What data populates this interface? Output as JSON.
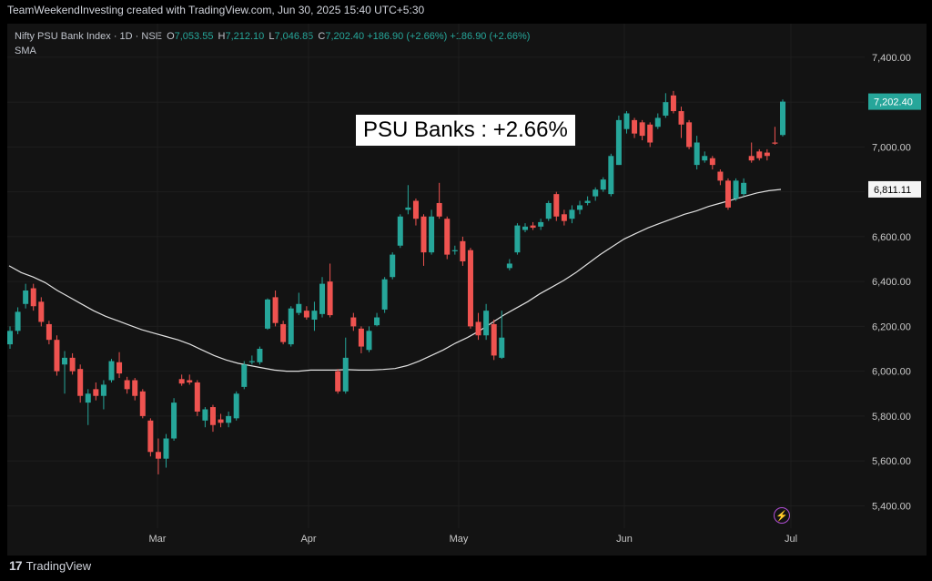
{
  "header": {
    "credit": "TeamWeekendInvesting created with TradingView.com, Jun 30, 2025 15:40 UTC+5:30",
    "symbol": "Nifty PSU Bank Index · 1D · NSE",
    "o_label": "O",
    "o": "7,053.55",
    "h_label": "H",
    "h": "7,212.10",
    "l_label": "L",
    "l": "7,046.85",
    "c_label": "C",
    "c": "7,202.40",
    "change": "+186.90 (+2.66%)",
    "change2": "+186.90 (+2.66%)",
    "indicator": "SMA"
  },
  "annotation": "PSU Banks : +2.66%",
  "footer": {
    "brand": "TradingView",
    "logo": "17"
  },
  "bolt_icon": "lightning-icon",
  "colors": {
    "up": "#26a69a",
    "down": "#ef5350",
    "sma": "#e0e0e0",
    "background": "#131313"
  },
  "chart_data": {
    "type": "candlestick",
    "ylim": [
      5300,
      7550
    ],
    "yticks": [
      5400,
      5600,
      5800,
      6000,
      6200,
      6400,
      6600,
      6800,
      7000,
      7200,
      7400
    ],
    "ytick_labels": [
      "5,400.00",
      "5,600.00",
      "5,800.00",
      "6,000.00",
      "6,200.00",
      "6,400.00",
      "6,600.00",
      "6,800.00",
      "7,000.00",
      "7,200.00",
      "7,400.00"
    ],
    "xtick_labels": [
      {
        "label": "Mar",
        "date": "2025-03-01"
      },
      {
        "label": "Apr",
        "date": "2025-04-01"
      },
      {
        "label": "May",
        "date": "2025-05-01"
      },
      {
        "label": "Jun",
        "date": "2025-06-01"
      },
      {
        "label": "Jul",
        "date": "2025-07-01"
      }
    ],
    "last_price": {
      "value": 7202.4,
      "label": "7,202.40"
    },
    "sma_last": {
      "value": 6811.11,
      "label": "6,811.11"
    },
    "candles": [
      {
        "o": 6120,
        "c": 6180,
        "h": 6200,
        "l": 6100
      },
      {
        "o": 6180,
        "c": 6265,
        "h": 6285,
        "l": 6165
      },
      {
        "o": 6300,
        "c": 6360,
        "h": 6390,
        "l": 6280
      },
      {
        "o": 6370,
        "c": 6290,
        "h": 6390,
        "l": 6270
      },
      {
        "o": 6310,
        "c": 6220,
        "h": 6330,
        "l": 6200
      },
      {
        "o": 6210,
        "c": 6140,
        "h": 6225,
        "l": 6120
      },
      {
        "o": 6140,
        "c": 6000,
        "h": 6160,
        "l": 5980
      },
      {
        "o": 6030,
        "c": 6060,
        "h": 6090,
        "l": 5900
      },
      {
        "o": 6060,
        "c": 6000,
        "h": 6080,
        "l": 5985
      },
      {
        "o": 6010,
        "c": 5890,
        "h": 6030,
        "l": 5860
      },
      {
        "o": 5860,
        "c": 5900,
        "h": 5920,
        "l": 5760
      },
      {
        "o": 5920,
        "c": 5890,
        "h": 5950,
        "l": 5870
      },
      {
        "o": 5890,
        "c": 5940,
        "h": 5960,
        "l": 5830
      },
      {
        "o": 5960,
        "c": 6045,
        "h": 6055,
        "l": 5950
      },
      {
        "o": 6040,
        "c": 5990,
        "h": 6085,
        "l": 5970
      },
      {
        "o": 5960,
        "c": 5920,
        "h": 5975,
        "l": 5900
      },
      {
        "o": 5960,
        "c": 5890,
        "h": 5970,
        "l": 5870
      },
      {
        "o": 5910,
        "c": 5800,
        "h": 5920,
        "l": 5790
      },
      {
        "o": 5780,
        "c": 5640,
        "h": 5790,
        "l": 5620
      },
      {
        "o": 5640,
        "c": 5610,
        "h": 5700,
        "l": 5540
      },
      {
        "o": 5610,
        "c": 5700,
        "h": 5720,
        "l": 5570
      },
      {
        "o": 5700,
        "c": 5860,
        "h": 5880,
        "l": 5690
      },
      {
        "o": 5965,
        "c": 5945,
        "h": 5985,
        "l": 5935
      },
      {
        "o": 5960,
        "c": 5950,
        "h": 5985,
        "l": 5940
      },
      {
        "o": 5950,
        "c": 5820,
        "h": 5960,
        "l": 5800
      },
      {
        "o": 5780,
        "c": 5830,
        "h": 5840,
        "l": 5750
      },
      {
        "o": 5840,
        "c": 5760,
        "h": 5850,
        "l": 5730
      },
      {
        "o": 5785,
        "c": 5770,
        "h": 5810,
        "l": 5750
      },
      {
        "o": 5770,
        "c": 5800,
        "h": 5820,
        "l": 5750
      },
      {
        "o": 5790,
        "c": 5900,
        "h": 5910,
        "l": 5780
      },
      {
        "o": 5930,
        "c": 6030,
        "h": 6045,
        "l": 5920
      },
      {
        "o": 6040,
        "c": 6045,
        "h": 6070,
        "l": 6030
      },
      {
        "o": 6040,
        "c": 6100,
        "h": 6110,
        "l": 6030
      },
      {
        "o": 6190,
        "c": 6320,
        "h": 6325,
        "l": 6185
      },
      {
        "o": 6330,
        "c": 6215,
        "h": 6360,
        "l": 6200
      },
      {
        "o": 6210,
        "c": 6130,
        "h": 6225,
        "l": 6120
      },
      {
        "o": 6120,
        "c": 6280,
        "h": 6290,
        "l": 6110
      },
      {
        "o": 6260,
        "c": 6300,
        "h": 6350,
        "l": 6250
      },
      {
        "o": 6270,
        "c": 6240,
        "h": 6290,
        "l": 6230
      },
      {
        "o": 6230,
        "c": 6270,
        "h": 6310,
        "l": 6180
      },
      {
        "o": 6255,
        "c": 6390,
        "h": 6420,
        "l": 6240
      },
      {
        "o": 6400,
        "c": 6250,
        "h": 6480,
        "l": 6240
      },
      {
        "o": 6000,
        "c": 5910,
        "h": 6010,
        "l": 5900
      },
      {
        "o": 5910,
        "c": 6060,
        "h": 6150,
        "l": 5900
      },
      {
        "o": 6240,
        "c": 6200,
        "h": 6260,
        "l": 6180
      },
      {
        "o": 6190,
        "c": 6110,
        "h": 6200,
        "l": 6080
      },
      {
        "o": 6095,
        "c": 6180,
        "h": 6200,
        "l": 6085
      },
      {
        "o": 6205,
        "c": 6240,
        "h": 6260,
        "l": 6200
      },
      {
        "o": 6275,
        "c": 6410,
        "h": 6420,
        "l": 6260
      },
      {
        "o": 6420,
        "c": 6520,
        "h": 6530,
        "l": 6410
      },
      {
        "o": 6560,
        "c": 6690,
        "h": 6700,
        "l": 6550
      },
      {
        "o": 6720,
        "c": 6730,
        "h": 6830,
        "l": 6700
      },
      {
        "o": 6760,
        "c": 6680,
        "h": 6770,
        "l": 6650
      },
      {
        "o": 6690,
        "c": 6530,
        "h": 6700,
        "l": 6470
      },
      {
        "o": 6530,
        "c": 6690,
        "h": 6720,
        "l": 6520
      },
      {
        "o": 6750,
        "c": 6690,
        "h": 6840,
        "l": 6680
      },
      {
        "o": 6680,
        "c": 6520,
        "h": 6690,
        "l": 6500
      },
      {
        "o": 6535,
        "c": 6540,
        "h": 6560,
        "l": 6520
      },
      {
        "o": 6580,
        "c": 6490,
        "h": 6600,
        "l": 6470
      },
      {
        "o": 6540,
        "c": 6200,
        "h": 6550,
        "l": 6190
      },
      {
        "o": 6220,
        "c": 6160,
        "h": 6260,
        "l": 6140
      },
      {
        "o": 6160,
        "c": 6270,
        "h": 6300,
        "l": 6140
      },
      {
        "o": 6210,
        "c": 6070,
        "h": 6230,
        "l": 6050
      },
      {
        "o": 6060,
        "c": 6150,
        "h": 6270,
        "l": 6055
      },
      {
        "o": 6460,
        "c": 6480,
        "h": 6500,
        "l": 6450
      },
      {
        "o": 6530,
        "c": 6650,
        "h": 6660,
        "l": 6520
      },
      {
        "o": 6630,
        "c": 6645,
        "h": 6660,
        "l": 6620
      },
      {
        "o": 6650,
        "c": 6640,
        "h": 6665,
        "l": 6630
      },
      {
        "o": 6645,
        "c": 6665,
        "h": 6680,
        "l": 6630
      },
      {
        "o": 6680,
        "c": 6750,
        "h": 6760,
        "l": 6670
      },
      {
        "o": 6790,
        "c": 6690,
        "h": 6800,
        "l": 6670
      },
      {
        "o": 6700,
        "c": 6670,
        "h": 6720,
        "l": 6650
      },
      {
        "o": 6680,
        "c": 6720,
        "h": 6740,
        "l": 6660
      },
      {
        "o": 6720,
        "c": 6740,
        "h": 6760,
        "l": 6700
      },
      {
        "o": 6750,
        "c": 6760,
        "h": 6780,
        "l": 6740
      },
      {
        "o": 6780,
        "c": 6810,
        "h": 6820,
        "l": 6760
      },
      {
        "o": 6810,
        "c": 6855,
        "h": 6865,
        "l": 6800
      },
      {
        "o": 6790,
        "c": 6960,
        "h": 6970,
        "l": 6780
      },
      {
        "o": 6920,
        "c": 7120,
        "h": 7140,
        "l": 6920
      },
      {
        "o": 7080,
        "c": 7150,
        "h": 7160,
        "l": 7060
      },
      {
        "o": 7120,
        "c": 7060,
        "h": 7130,
        "l": 7040
      },
      {
        "o": 7110,
        "c": 7050,
        "h": 7120,
        "l": 7030
      },
      {
        "o": 7100,
        "c": 7020,
        "h": 7110,
        "l": 7000
      },
      {
        "o": 7090,
        "c": 7130,
        "h": 7150,
        "l": 7080
      },
      {
        "o": 7140,
        "c": 7200,
        "h": 7240,
        "l": 7130
      },
      {
        "o": 7230,
        "c": 7160,
        "h": 7250,
        "l": 7150
      },
      {
        "o": 7160,
        "c": 7100,
        "h": 7180,
        "l": 7040
      },
      {
        "o": 7110,
        "c": 7000,
        "h": 7120,
        "l": 6990
      },
      {
        "o": 6920,
        "c": 7020,
        "h": 7050,
        "l": 6900
      },
      {
        "o": 6940,
        "c": 6960,
        "h": 6980,
        "l": 6930
      },
      {
        "o": 6950,
        "c": 6920,
        "h": 6960,
        "l": 6900
      },
      {
        "o": 6890,
        "c": 6850,
        "h": 6900,
        "l": 6830
      },
      {
        "o": 6850,
        "c": 6730,
        "h": 6860,
        "l": 6720
      },
      {
        "o": 6770,
        "c": 6850,
        "h": 6860,
        "l": 6760
      },
      {
        "o": 6790,
        "c": 6840,
        "h": 6860,
        "l": 6780
      },
      {
        "o": 6960,
        "c": 6940,
        "h": 7020,
        "l": 6930
      },
      {
        "o": 6980,
        "c": 6950,
        "h": 6990,
        "l": 6940
      },
      {
        "o": 6975,
        "c": 6960,
        "h": 6990,
        "l": 6940
      },
      {
        "o": 7020,
        "c": 7015,
        "h": 7090,
        "l": 7010
      },
      {
        "o": 7053.55,
        "c": 7202.4,
        "h": 7212.1,
        "l": 7046.85
      }
    ],
    "sma": [
      6470,
      6440,
      6420,
      6395,
      6360,
      6330,
      6300,
      6270,
      6245,
      6225,
      6205,
      6185,
      6170,
      6155,
      6140,
      6120,
      6095,
      6070,
      6050,
      6035,
      6025,
      6015,
      6005,
      6000,
      6000,
      6005,
      6005,
      6005,
      6007,
      6005,
      6005,
      6008,
      6012,
      6025,
      6045,
      6070,
      6095,
      6125,
      6150,
      6180,
      6215,
      6250,
      6280,
      6310,
      6345,
      6375,
      6405,
      6440,
      6480,
      6520,
      6555,
      6590,
      6615,
      6640,
      6660,
      6680,
      6700,
      6715,
      6735,
      6750,
      6765,
      6780,
      6795,
      6805,
      6811
    ]
  }
}
